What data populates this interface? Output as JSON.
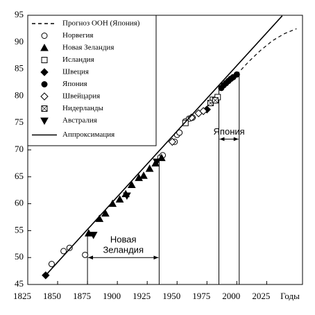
{
  "chart_data": {
    "type": "scatter",
    "x_label": "Годы",
    "xlim": [
      1825,
      2055
    ],
    "xticks": [
      1825,
      1850,
      1875,
      1900,
      1925,
      1950,
      1975,
      2000,
      2025
    ],
    "ylim": [
      45,
      95
    ],
    "yticks": [
      45,
      50,
      55,
      60,
      65,
      70,
      75,
      80,
      85,
      90,
      95
    ],
    "series": [
      {
        "name": "Прогноз ООН (Япония)",
        "style": "dashed",
        "color": "#000",
        "x": [
          2000,
          2010,
          2020,
          2030,
          2040,
          2050
        ],
        "values": [
          84,
          86.4,
          88.5,
          90.3,
          91.6,
          92.5
        ]
      },
      {
        "name": "Норвегия",
        "marker": "circle-open",
        "color": "#000",
        "x": [
          1845,
          1855,
          1860,
          1873,
          1936,
          1938,
          1948,
          1950,
          1952,
          1957,
          1960,
          1963
        ],
        "values": [
          48.8,
          51.2,
          51.8,
          50.5,
          68.6,
          69,
          71.5,
          72.8,
          73.2,
          75.3,
          75.8,
          76
        ]
      },
      {
        "name": "Новая Зеландия",
        "marker": "triangle-up",
        "color": "#000",
        "x": [
          1876,
          1885,
          1890,
          1896,
          1902,
          1907,
          1912,
          1918,
          1922,
          1927,
          1932,
          1937
        ],
        "values": [
          54.5,
          57.2,
          58.2,
          60,
          60.8,
          61.8,
          63.5,
          64.8,
          65.2,
          66.5,
          67.5,
          68.5
        ]
      },
      {
        "name": "Исландия",
        "marker": "square-open",
        "color": "#000",
        "x": [
          1957,
          1980,
          1984
        ],
        "values": [
          75,
          79.3,
          79.8
        ]
      },
      {
        "name": "Швеция",
        "marker": "diamond-filled",
        "color": "#000",
        "x": [
          1840,
          1975
        ],
        "values": [
          46.7,
          77.5
        ]
      },
      {
        "name": "Япония",
        "marker": "circle-filled",
        "color": "#000",
        "x": [
          1987,
          1989,
          1991,
          1993,
          1995,
          1997,
          2000
        ],
        "values": [
          81.5,
          82,
          82.4,
          82.8,
          83.2,
          83.5,
          84
        ]
      },
      {
        "name": "Швейцария",
        "marker": "diamond-open",
        "color": "#000",
        "x": [
          1946,
          1962,
          1968,
          1972
        ],
        "values": [
          71.5,
          76,
          76.8,
          77.2
        ]
      },
      {
        "name": "Нидерланды",
        "marker": "square-boxed",
        "color": "#000",
        "x": [
          1978,
          1982
        ],
        "values": [
          78.7,
          79.2
        ]
      },
      {
        "name": "Австралия",
        "marker": "triangle-down",
        "color": "#000",
        "x": [
          1880,
          1908,
          1933
        ],
        "values": [
          54.2,
          61.5,
          67.8
        ]
      },
      {
        "name": "Аппроксимация",
        "style": "solid",
        "color": "#000",
        "x": [
          1840,
          2038
        ],
        "values": [
          46.7,
          94.9
        ]
      }
    ],
    "annotations": [
      {
        "lines": [
          "Новая",
          "Зеландия"
        ],
        "span": [
          1875,
          1935
        ],
        "tops": [
          54.5,
          68.5
        ],
        "arrow_at": 50
      },
      {
        "lines": [
          "Япония"
        ],
        "span": [
          1985,
          2002
        ],
        "tops": [
          81.3,
          84
        ],
        "arrow_at": 72
      }
    ]
  }
}
